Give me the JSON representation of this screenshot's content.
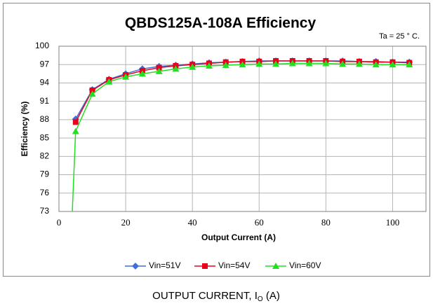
{
  "chart_data": {
    "type": "line",
    "title": "QBDS125A-108A Efficiency",
    "annotation": "Ta = 25 ° C.",
    "x_label": "Output Current (A)",
    "y_label": "Efficiency (%)",
    "caption": {
      "main": "OUTPUT CURRENT, I",
      "sub": "O",
      "tail": " (A)"
    },
    "x": [
      4,
      5,
      10,
      15,
      20,
      25,
      30,
      35,
      40,
      45,
      50,
      55,
      60,
      65,
      70,
      75,
      80,
      85,
      90,
      95,
      100,
      105
    ],
    "series": [
      {
        "name": "Vin=51V",
        "color": "#3f6fd8",
        "marker": "diamond",
        "values": [
          null,
          88.1,
          92.9,
          94.6,
          95.5,
          96.3,
          96.7,
          96.9,
          97.1,
          97.3,
          97.4,
          97.5,
          97.6,
          97.6,
          97.6,
          97.6,
          97.6,
          97.6,
          97.5,
          97.5,
          97.4,
          97.4
        ]
      },
      {
        "name": "Vin=54V",
        "color": "#e8001c",
        "marker": "square",
        "values": [
          null,
          87.6,
          92.8,
          94.5,
          95.3,
          96.0,
          96.5,
          96.8,
          97.0,
          97.2,
          97.4,
          97.5,
          97.5,
          97.6,
          97.6,
          97.6,
          97.6,
          97.5,
          97.5,
          97.4,
          97.4,
          97.3
        ]
      },
      {
        "name": "Vin=60V",
        "color": "#22e020",
        "marker": "triangle",
        "values": [
          73,
          86.1,
          92.2,
          94.2,
          95.0,
          95.5,
          95.9,
          96.3,
          96.6,
          96.8,
          96.9,
          97.0,
          97.1,
          97.1,
          97.2,
          97.2,
          97.2,
          97.1,
          97.1,
          97.0,
          97.0,
          97.0
        ]
      }
    ],
    "xlim": [
      0,
      110
    ],
    "xticks": [
      0,
      20,
      40,
      60,
      80,
      100
    ],
    "ylim": [
      73,
      100
    ],
    "yticks": [
      73,
      76,
      79,
      82,
      85,
      88,
      91,
      94,
      97,
      100
    ],
    "grid": true,
    "legend": "bottom"
  }
}
